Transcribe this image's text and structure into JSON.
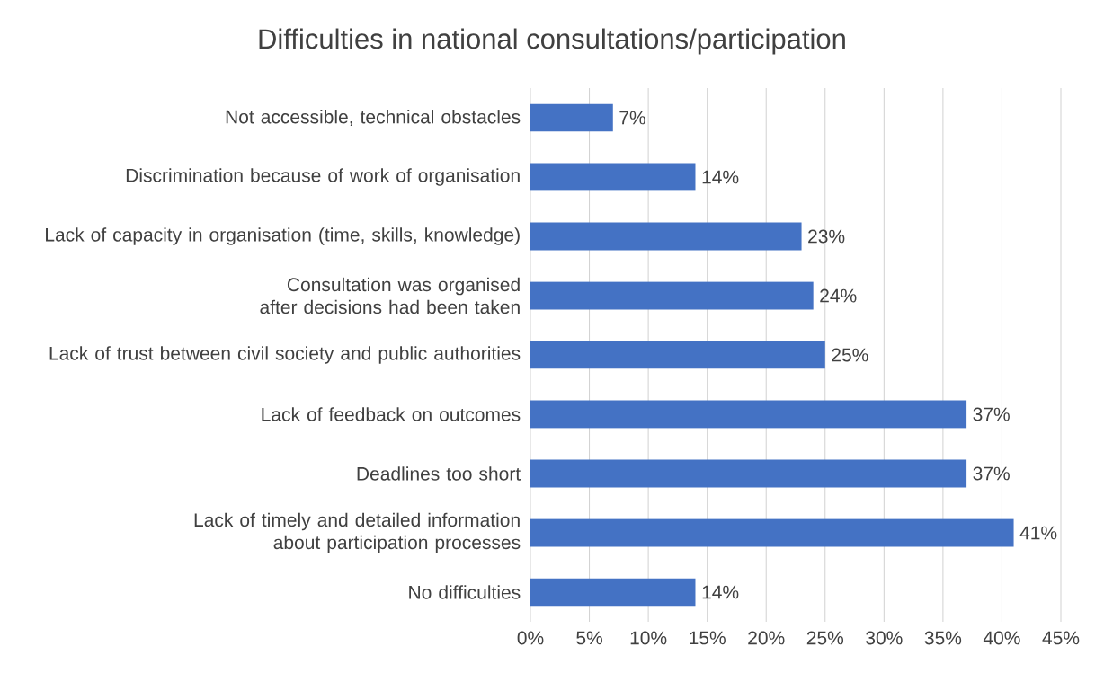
{
  "chart_data": {
    "type": "bar",
    "orientation": "horizontal",
    "title": "Difficulties in national consultations/participation",
    "categories": [
      "Not accessible, technical obstacles",
      "Discrimination because of work of organisation",
      "Lack of capacity in organisation (time, skills, knowledge)",
      "Consultation was organised after decisions had been taken",
      "Lack of trust between civil society and public authorities",
      "Lack of feedback on outcomes",
      "Deadlines too short",
      "Lack of timely and detailed information about participation processes",
      "No difficulties"
    ],
    "values": [
      7,
      14,
      23,
      24,
      25,
      37,
      37,
      41,
      14
    ],
    "value_labels": [
      "7%",
      "14%",
      "23%",
      "24%",
      "25%",
      "37%",
      "37%",
      "41%",
      "14%"
    ],
    "color": "#4472c4",
    "xlim": [
      0,
      45
    ],
    "xticks": [
      {
        "value": 0,
        "label": "0%"
      },
      {
        "value": 5,
        "label": "5%"
      },
      {
        "value": 10,
        "label": "10%"
      },
      {
        "value": 15,
        "label": "15%"
      },
      {
        "value": 20,
        "label": "20%"
      },
      {
        "value": 25,
        "label": "25%"
      },
      {
        "value": 30,
        "label": "30%"
      },
      {
        "value": 35,
        "label": "35%"
      },
      {
        "value": 40,
        "label": "40%"
      },
      {
        "value": 45,
        "label": "45%"
      }
    ],
    "grid": "x"
  }
}
